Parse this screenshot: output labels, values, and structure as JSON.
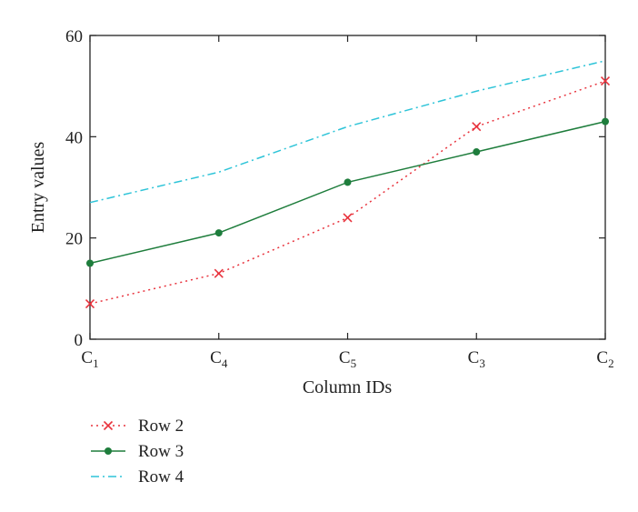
{
  "chart_data": {
    "type": "line",
    "title": "",
    "xlabel": "Column IDs",
    "ylabel": "Entry values",
    "categories": [
      {
        "base": "C",
        "sub": "1"
      },
      {
        "base": "C",
        "sub": "4"
      },
      {
        "base": "C",
        "sub": "5"
      },
      {
        "base": "C",
        "sub": "3"
      },
      {
        "base": "C",
        "sub": "2"
      }
    ],
    "ylim": [
      0,
      60
    ],
    "yticks": [
      0,
      20,
      40,
      60
    ],
    "grid": false,
    "legend_position": "bottom-left, below plot",
    "series": [
      {
        "name": "Row 2",
        "values": [
          7,
          13,
          24,
          42,
          51
        ],
        "color": "#e8323c",
        "line_style": "dotted",
        "marker": "x"
      },
      {
        "name": "Row 3",
        "values": [
          15,
          21,
          31,
          37,
          43
        ],
        "color": "#1e7d3c",
        "line_style": "solid",
        "marker": "dot"
      },
      {
        "name": "Row 4",
        "values": [
          27,
          33,
          42,
          49,
          55
        ],
        "color": "#2ec4d8",
        "line_style": "dashdot",
        "marker": "none"
      }
    ]
  }
}
